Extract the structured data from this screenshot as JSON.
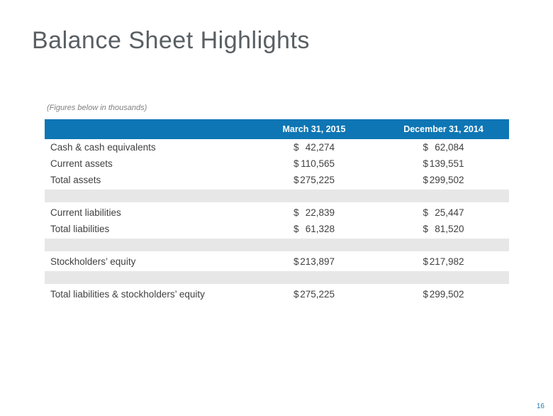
{
  "slide": {
    "title": "Balance Sheet Highlights",
    "note": "(Figures below in thousands)",
    "page_number": "16"
  },
  "table": {
    "currency": "$",
    "columns": [
      "March 31, 2015",
      "December 31, 2014"
    ],
    "rows": [
      {
        "label": "Cash & cash equivalents",
        "values": [
          "42,274",
          "62,084"
        ]
      },
      {
        "label": "Current assets",
        "values": [
          "110,565",
          "139,551"
        ]
      },
      {
        "label": "Total assets",
        "values": [
          "275,225",
          "299,502"
        ]
      },
      {
        "label": "Current liabilities",
        "values": [
          "22,839",
          "25,447"
        ]
      },
      {
        "label": "Total liabilities",
        "values": [
          "61,328",
          "81,520"
        ]
      },
      {
        "label": "Stockholders’ equity",
        "values": [
          "213,897",
          "217,982"
        ]
      },
      {
        "label": "Total liabilities & stockholders’ equity",
        "values": [
          "275,225",
          "299,502"
        ]
      }
    ]
  },
  "colors": {
    "header_blue": "#0e76b4",
    "spacer_gray": "#e7e7e8",
    "title_gray": "#595f63",
    "text_gray": "#404040",
    "note_gray": "#808080",
    "page_blue": "#2779b0"
  }
}
